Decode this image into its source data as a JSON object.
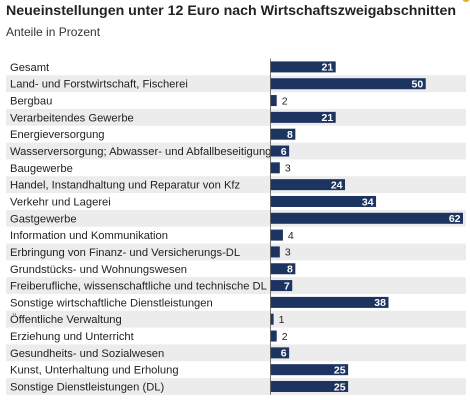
{
  "title": "Neueinstellungen unter 12 Euro nach Wirtschaftszweigabschnitten",
  "subtitle": "Anteile in Prozent",
  "colors": {
    "bar": "#1d3461",
    "stripe": "#ececec",
    "accent": "#e8b01e",
    "label_inside": "#ffffff",
    "label_outside": "#222222"
  },
  "chart_data": {
    "type": "bar",
    "orientation": "horizontal",
    "title": "Neueinstellungen unter 12 Euro nach Wirtschaftszweigabschnitten",
    "subtitle": "Anteile in Prozent",
    "xlim": [
      0,
      62
    ],
    "categories": [
      "Gesamt",
      "Land- und Forstwirtschaft, Fischerei",
      "Bergbau",
      "Verarbeitendes Gewerbe",
      "Energieversorgung",
      "Wasserversorgung; Abwasser- und Abfallbeseitigung",
      "Baugewerbe",
      "Handel, Instandhaltung und Reparatur von Kfz",
      "Verkehr und Lagerei",
      "Gastgewerbe",
      "Information und Kommunikation",
      "Erbringung von Finanz- und Versicherungs-DL",
      "Grundstücks- und Wohnungswesen",
      "Freiberufliche, wissenschaftliche und technische DL",
      "Sonstige wirtschaftliche Dienstleistungen",
      "Öffentliche Verwaltung",
      "Erziehung und Unterricht",
      "Gesundheits- und Sozialwesen",
      "Kunst, Unterhaltung und Erholung",
      "Sonstige Dienstleistungen (DL)"
    ],
    "values": [
      21,
      50,
      2,
      21,
      8,
      6,
      3,
      24,
      34,
      62,
      4,
      3,
      8,
      7,
      38,
      1,
      2,
      6,
      25,
      25
    ]
  }
}
